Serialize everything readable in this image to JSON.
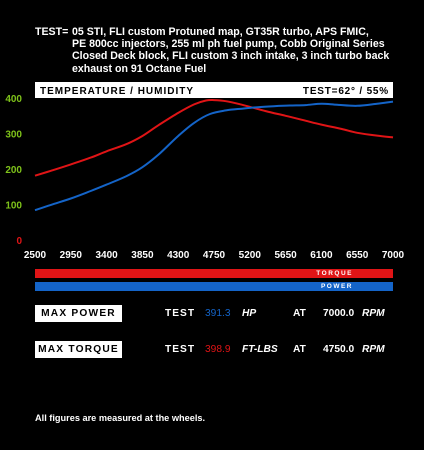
{
  "test": {
    "label": "TEST=",
    "lines": [
      "05 STI, FLI custom Protuned map, GT35R turbo, APS FMIC,",
      "PE 800cc injectors, 255 ml ph fuel pump, Cobb Original Series",
      "Closed Deck block, FLI custom 3 inch intake,  3 inch turbo back",
      "exhaust on 91 Octane Fuel"
    ]
  },
  "colors": {
    "torque": "#e01416",
    "power": "#1464c8",
    "background": "#000000",
    "y_tick": "#7ec21a",
    "zero_tick": "#e01416"
  },
  "chart_data": {
    "type": "line",
    "title": "TEMPERATURE / HUMIDITY",
    "subtitle": "TEST=62° / 55%",
    "xlabel": "",
    "ylabel": "",
    "x_ticks": [
      "2500",
      "2950",
      "3400",
      "3850",
      "4300",
      "4750",
      "5200",
      "5650",
      "6100",
      "6550",
      "7000"
    ],
    "y_ticks": [
      "0",
      "100",
      "200",
      "300",
      "400"
    ],
    "xlim": [
      2500,
      7000
    ],
    "ylim": [
      0,
      400
    ],
    "grid": false,
    "series": [
      {
        "name": "TORQUE",
        "color": "#e01416",
        "x": [
          2500,
          2700,
          2950,
          3200,
          3400,
          3650,
          3850,
          4050,
          4300,
          4500,
          4650,
          4750,
          4900,
          5100,
          5400,
          5650,
          5900,
          6100,
          6350,
          6550,
          6800,
          7000
        ],
        "y": [
          181,
          195,
          213,
          232,
          250,
          270,
          293,
          323,
          358,
          382,
          393,
          394,
          391,
          381,
          363,
          350,
          336,
          325,
          313,
          302,
          294,
          289
        ]
      },
      {
        "name": "POWER",
        "color": "#1464c8",
        "x": [
          2500,
          2700,
          2950,
          3200,
          3400,
          3650,
          3850,
          4050,
          4300,
          4500,
          4700,
          4900,
          5100,
          5300,
          5500,
          5700,
          5900,
          6100,
          6300,
          6550,
          6800,
          7000
        ],
        "y": [
          84,
          99,
          117,
          138,
          156,
          180,
          205,
          240,
          293,
          330,
          355,
          365,
          370,
          374,
          377,
          379,
          380,
          384,
          381,
          378,
          384,
          390
        ]
      }
    ]
  },
  "legend": {
    "torque": "TORQUE",
    "power": "POWER"
  },
  "max_power": {
    "label": "MAX POWER",
    "test": "TEST",
    "value": "391.3",
    "unit": "HP",
    "at": "AT",
    "rpm_value": "7000.0",
    "rpm_unit": "RPM"
  },
  "max_torque": {
    "label": "MAX TORQUE",
    "test": "TEST",
    "value": "398.9",
    "unit": "FT-LBS",
    "at": "AT",
    "rpm_value": "4750.0",
    "rpm_unit": "RPM"
  },
  "footnote": "All figures are measured at the wheels."
}
